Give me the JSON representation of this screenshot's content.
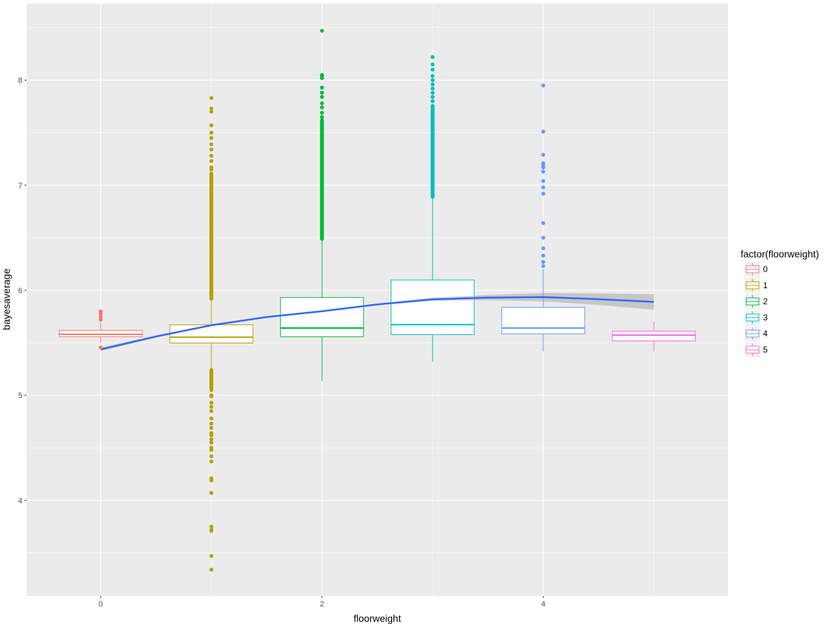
{
  "chart_data": {
    "type": "boxplot",
    "xlabel": "floorweight",
    "ylabel": "bayesaverage",
    "xlim": [
      -0.67,
      5.67
    ],
    "ylim": [
      3.09,
      8.73
    ],
    "x_ticks": [
      0,
      2,
      4
    ],
    "x_tick_labels": [
      "0",
      "2",
      "4"
    ],
    "y_ticks": [
      4,
      5,
      6,
      7,
      8
    ],
    "y_tick_labels": [
      "4",
      "5",
      "6",
      "7",
      "8"
    ],
    "grid": true,
    "legend": {
      "title": "factor(floorweight)",
      "placement": "right",
      "entries": [
        "0",
        "1",
        "2",
        "3",
        "4",
        "5"
      ]
    },
    "groups": [
      {
        "x": 0,
        "name": "0",
        "color": "#F8766D",
        "lower_whisker": 5.5,
        "q1": 5.558,
        "median": 5.58,
        "q3": 5.618,
        "upper_whisker": 5.695,
        "outliers": [
          5.8,
          5.78,
          5.75,
          5.72,
          5.455
        ],
        "dense_outlier_ranges": []
      },
      {
        "x": 1,
        "name": "1",
        "color": "#B79F00",
        "lower_whisker": 5.255,
        "q1": 5.498,
        "median": 5.553,
        "q3": 5.671,
        "upper_whisker": 5.913,
        "outliers": [
          7.83,
          7.73,
          7.7,
          7.57,
          7.5,
          7.45,
          7.39,
          7.34,
          7.28,
          7.23,
          7.17,
          7.15,
          7.11,
          5.05,
          5.0,
          4.99,
          4.93,
          4.89,
          4.85,
          4.78,
          4.73,
          4.69,
          4.64,
          4.62,
          4.58,
          4.55,
          4.5,
          4.48,
          4.42,
          4.37,
          4.21,
          4.19,
          4.07,
          3.75,
          3.72,
          3.71,
          3.47,
          3.34
        ],
        "dense_outlier_ranges": [
          [
            5.92,
            7.1
          ],
          [
            5.06,
            5.25
          ]
        ]
      },
      {
        "x": 2,
        "name": "2",
        "color": "#00BA38",
        "lower_whisker": 5.135,
        "q1": 5.558,
        "median": 5.64,
        "q3": 5.931,
        "upper_whisker": 6.48,
        "outliers": [
          8.47,
          8.05,
          8.04,
          8.02,
          7.93,
          7.88,
          7.84,
          7.78,
          7.74,
          7.69,
          7.65
        ],
        "dense_outlier_ranges": [
          [
            6.49,
            7.62
          ]
        ]
      },
      {
        "x": 3,
        "name": "3",
        "color": "#00BFC4",
        "lower_whisker": 5.318,
        "q1": 5.578,
        "median": 5.673,
        "q3": 6.098,
        "upper_whisker": 6.88,
        "outliers": [
          8.22,
          8.15,
          8.1,
          8.04,
          8.0,
          7.96,
          7.92,
          7.88,
          7.84,
          7.8
        ],
        "dense_outlier_ranges": [
          [
            6.89,
            7.76
          ]
        ]
      },
      {
        "x": 4,
        "name": "4",
        "color": "#619CFF",
        "lower_whisker": 5.418,
        "q1": 5.585,
        "median": 5.64,
        "q3": 5.838,
        "upper_whisker": 6.2,
        "outliers": [
          7.95,
          7.51,
          7.29,
          7.21,
          7.19,
          7.17,
          7.13,
          7.04,
          6.98,
          6.92,
          6.64,
          6.5,
          6.4,
          6.33,
          6.27,
          6.23
        ],
        "dense_outlier_ranges": []
      },
      {
        "x": 5,
        "name": "5",
        "color": "#F564E3",
        "lower_whisker": 5.418,
        "q1": 5.518,
        "median": 5.573,
        "q3": 5.611,
        "upper_whisker": 5.7,
        "outliers": [],
        "dense_outlier_ranges": []
      }
    ],
    "smooth": {
      "color": "#3366FF",
      "x": [
        0,
        0.5,
        1,
        1.5,
        2,
        2.5,
        3,
        3.5,
        4,
        4.5,
        5
      ],
      "y": [
        5.437,
        5.56,
        5.667,
        5.745,
        5.8,
        5.865,
        5.913,
        5.93,
        5.935,
        5.915,
        5.889
      ],
      "ci_low": [
        5.42,
        5.55,
        5.66,
        5.738,
        5.795,
        5.858,
        5.9,
        5.905,
        5.895,
        5.86,
        5.815
      ],
      "ci_high": [
        5.455,
        5.57,
        5.674,
        5.752,
        5.805,
        5.872,
        5.93,
        5.955,
        5.973,
        5.97,
        5.962
      ]
    }
  }
}
